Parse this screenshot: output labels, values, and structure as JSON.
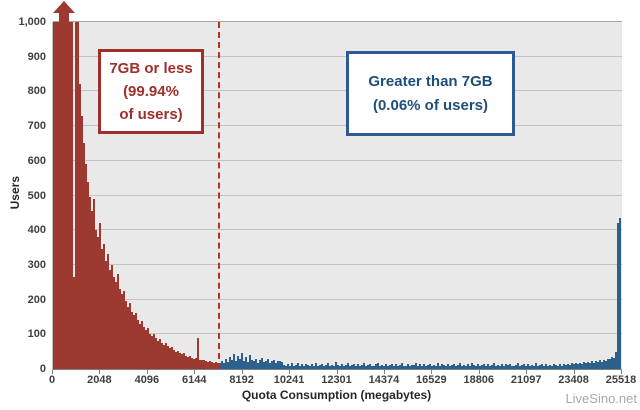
{
  "watermark": "LiveSino.net",
  "chart_data": {
    "type": "bar",
    "title": "",
    "xlabel": "Quota Consumption (megabytes)",
    "ylabel": "Users",
    "ylim": [
      0,
      1000
    ],
    "grid": true,
    "legend_position": "none",
    "overflow_arrow": true,
    "y_ticks": [
      "0",
      "100",
      "200",
      "300",
      "400",
      "500",
      "600",
      "700",
      "800",
      "900",
      "1,000"
    ],
    "x_ticks": [
      "0",
      "2048",
      "4096",
      "6144",
      "8192",
      "10241",
      "12301",
      "14374",
      "16529",
      "18806",
      "21097",
      "23408",
      "25518"
    ],
    "threshold": {
      "label": "7GB",
      "mb": 7168
    },
    "annotations": {
      "red": {
        "lines": [
          "7GB or less",
          "(99.94%",
          "of users)"
        ]
      },
      "blue": {
        "lines": [
          "Greater than 7GB",
          "(0.06% of users)"
        ]
      }
    },
    "series": [
      {
        "name": "7GB or less",
        "share_label": "99.94% of users",
        "color": "#9c3931",
        "values": [
          1000,
          1000,
          1000,
          1000,
          1000,
          1000,
          1000,
          1000,
          1000,
          1000,
          265,
          1000,
          1000,
          820,
          730,
          650,
          590,
          540,
          495,
          455,
          490,
          400,
          380,
          420,
          345,
          360,
          310,
          330,
          285,
          300,
          265,
          250,
          275,
          230,
          215,
          225,
          195,
          180,
          190,
          165,
          155,
          160,
          140,
          130,
          138,
          120,
          112,
          118,
          102,
          95,
          100,
          88,
          82,
          86,
          75,
          70,
          74,
          65,
          60,
          63,
          55,
          50,
          53,
          46,
          42,
          45,
          38,
          35,
          37,
          32,
          30,
          32,
          90,
          27,
          25,
          27,
          23,
          21,
          23,
          19,
          18,
          20,
          17
        ]
      },
      {
        "name": "Greater than 7GB",
        "share_label": "0.06% of users",
        "color": "#2e608c",
        "values": [
          18,
          24,
          16,
          28,
          20,
          35,
          26,
          42,
          22,
          38,
          28,
          45,
          24,
          34,
          20,
          40,
          26,
          22,
          30,
          18,
          26,
          32,
          20,
          24,
          28,
          16,
          22,
          26,
          18,
          22,
          24,
          20,
          12,
          9,
          14,
          10,
          16,
          8,
          12,
          18,
          10,
          13,
          9,
          15,
          11,
          8,
          13,
          10,
          17,
          9,
          12,
          14,
          8,
          11,
          16,
          10,
          12,
          9,
          20,
          11,
          8,
          14,
          10,
          12,
          16,
          9,
          11,
          13,
          8,
          15,
          10,
          12,
          18,
          9,
          11,
          14,
          10,
          8,
          13,
          16,
          9,
          12,
          10,
          14,
          8,
          11,
          15,
          9,
          13,
          10,
          12,
          17,
          8,
          10,
          14,
          9,
          12,
          11,
          16,
          8,
          13,
          10,
          15,
          9,
          11,
          14,
          8,
          12,
          10,
          18,
          9,
          13,
          11,
          8,
          15,
          10,
          12,
          14,
          9,
          11,
          16,
          8,
          12,
          10,
          13,
          9,
          17,
          11,
          8,
          14,
          10,
          12,
          15,
          9,
          13,
          8,
          11,
          16,
          10,
          12,
          9,
          14,
          8,
          13,
          11,
          15,
          10,
          9,
          12,
          17,
          8,
          11,
          13,
          10,
          14,
          9,
          12,
          8,
          16,
          10,
          11,
          13,
          9,
          15,
          8,
          12,
          10,
          14,
          11,
          9,
          13,
          10,
          13,
          11,
          15,
          12,
          16,
          13,
          17,
          14,
          18,
          15,
          20,
          16,
          21,
          17,
          22,
          18,
          24,
          19,
          25,
          21,
          27,
          24,
          30,
          28,
          35,
          32,
          50,
          420,
          435
        ]
      }
    ]
  }
}
